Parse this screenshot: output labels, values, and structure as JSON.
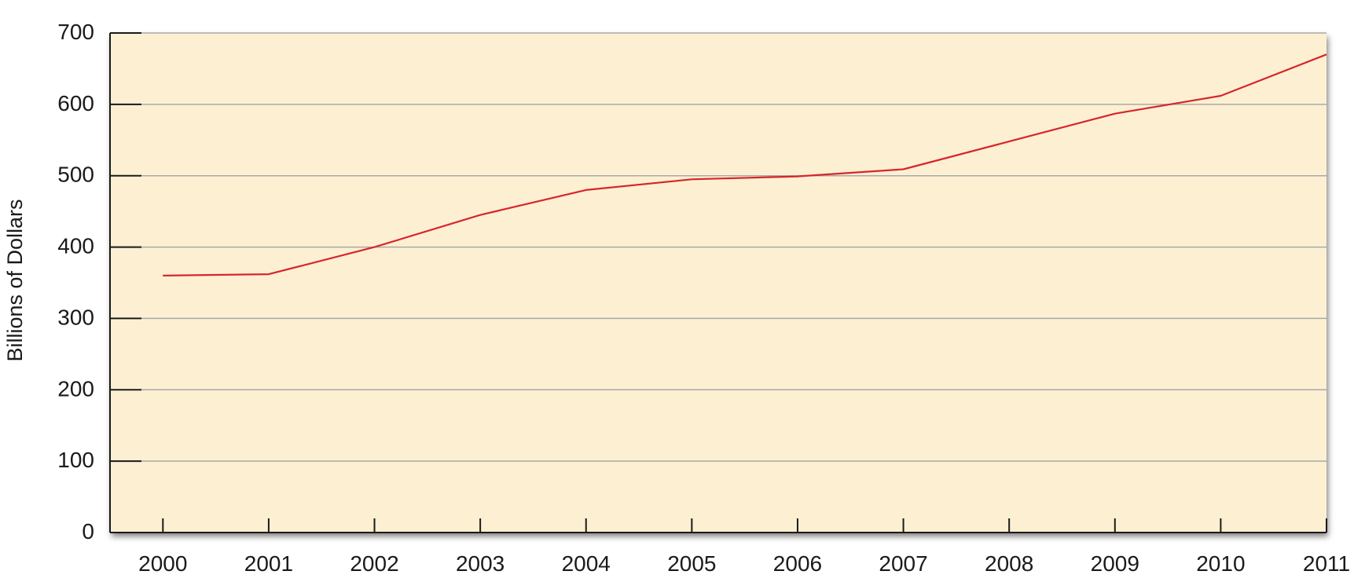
{
  "chart_data": {
    "type": "line",
    "title": "",
    "xlabel": "",
    "ylabel": "Billions of Dollars",
    "categories": [
      "2000",
      "2001",
      "2002",
      "2003",
      "2004",
      "2005",
      "2006",
      "2007",
      "2008",
      "2009",
      "2010",
      "2011"
    ],
    "series": [
      {
        "values": [
          360,
          362,
          400,
          445,
          480,
          495,
          499,
          509,
          548,
          587,
          612,
          670
        ],
        "color": "#d7262c"
      }
    ],
    "ylim": [
      0,
      700
    ],
    "yticks": [
      "0",
      "100",
      "200",
      "300",
      "400",
      "500",
      "600",
      "700"
    ],
    "grid": true,
    "legend": "none",
    "colors": {
      "plot_background": "#fdf0d2",
      "gridline": "#a9a9a9",
      "axis": "#1a1a1a"
    }
  }
}
